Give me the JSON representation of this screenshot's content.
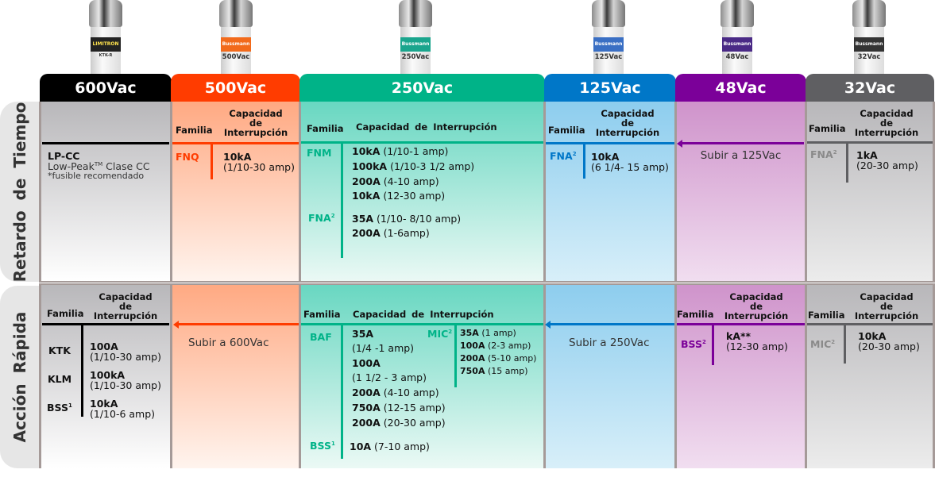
{
  "colors": {
    "v600": "#000000",
    "v500": "#ff3c00",
    "v250": "#00b388",
    "v125": "#0077c8",
    "v48": "#7b0099",
    "v32": "#5f5f62"
  },
  "fuses": [
    {
      "brand": "LIMITRON",
      "volt": "KTK-R"
    },
    {
      "brand": "Bussmann",
      "volt": "500Vac"
    },
    {
      "brand": "Bussmann",
      "volt": "250Vac"
    },
    {
      "brand": "Bussmann",
      "volt": "125Vac"
    },
    {
      "brand": "Bussmann",
      "volt": "48Vac"
    },
    {
      "brand": "Bussmann",
      "volt": "32Vac"
    }
  ],
  "headers": [
    "600Vac",
    "500Vac",
    "250Vac",
    "125Vac",
    "48Vac",
    "32Vac"
  ],
  "rows": [
    "Retardo de Tiempo",
    "Acción Rápida"
  ],
  "labels": {
    "familia": "Familia",
    "capacidad": "Capacidad de Interrupción",
    "cap_l1": "Capacidad",
    "cap_l2": "de",
    "cap_l3": "Interrupción"
  },
  "td": {
    "v600": {
      "name": "LP-CC",
      "line1": "Low-Peak",
      "tm": "TM",
      "line1b": " Clase CC",
      "line2": "*fusible recomendado"
    },
    "v500": {
      "fam": "FNQ",
      "val": "10kA",
      "range": "(1/10-30 amp)"
    },
    "v250": {
      "fam1": "FNM",
      "fam2": "FNA",
      "fam2sup": "2",
      "items": [
        {
          "v": "10kA",
          "r": " (1/10-1 amp)"
        },
        {
          "v": "100kA",
          "r": " (1/10-3 1/2 amp)"
        },
        {
          "v": "200A",
          "r": " (4-10 amp)"
        },
        {
          "v": "10kA",
          "r": " (12-30 amp)"
        },
        {
          "v": "35A",
          "r": " (1/10- 8/10 amp)"
        },
        {
          "v": "200A",
          "r": " (1-6amp)"
        }
      ]
    },
    "v125": {
      "fam": "FNA",
      "sup": "2",
      "val": "10kA",
      "range": "(6 1/4- 15 amp)"
    },
    "v48": {
      "note": "Subir a 125Vac"
    },
    "v32": {
      "fam": "FNA",
      "sup": "2",
      "val": "1kA",
      "range": "(20-30 amp)"
    }
  },
  "fa": {
    "v600": [
      {
        "fam": "KTK",
        "sup": "",
        "v": "100A",
        "r": "(1/10-30 amp)"
      },
      {
        "fam": "KLM",
        "sup": "",
        "v": "100kA",
        "r": "(1/10-30 amp)"
      },
      {
        "fam": "BSS",
        "sup": "1",
        "v": "10kA",
        "r": "(1/10-6 amp)"
      }
    ],
    "v500": {
      "note": "Subir a 600Vac"
    },
    "v250": {
      "baf": "BAF",
      "baf_items": [
        "35A",
        "(1/4 -1 amp)",
        "100A",
        "(1 1/2 - 3 amp)"
      ],
      "baf_more": [
        {
          "v": "200A",
          "r": " (4-10 amp)"
        },
        {
          "v": "750A",
          "r": " (12-15 amp)"
        },
        {
          "v": "200A",
          "r": " (20-30 amp)"
        }
      ],
      "mic": "MIC",
      "mic_sup": "2",
      "mic_items": [
        {
          "v": "35A",
          "r": " (1 amp)"
        },
        {
          "v": "100A",
          "r": " (2-3 amp)"
        },
        {
          "v": "200A",
          "r": " (5-10 amp)"
        },
        {
          "v": "750A",
          "r": " (15 amp)"
        }
      ],
      "bss": "BSS",
      "bss_sup": "1",
      "bss_v": "10A",
      "bss_r": " (7-10 amp)"
    },
    "v125": {
      "note": "Subir a 250Vac"
    },
    "v48": {
      "fam": "BSS",
      "sup": "2",
      "val": "kA**",
      "range": "(12-30 amp)"
    },
    "v32": {
      "fam": "MIC",
      "sup": "2",
      "val": "10kA",
      "range": "(20-30 amp)"
    }
  }
}
